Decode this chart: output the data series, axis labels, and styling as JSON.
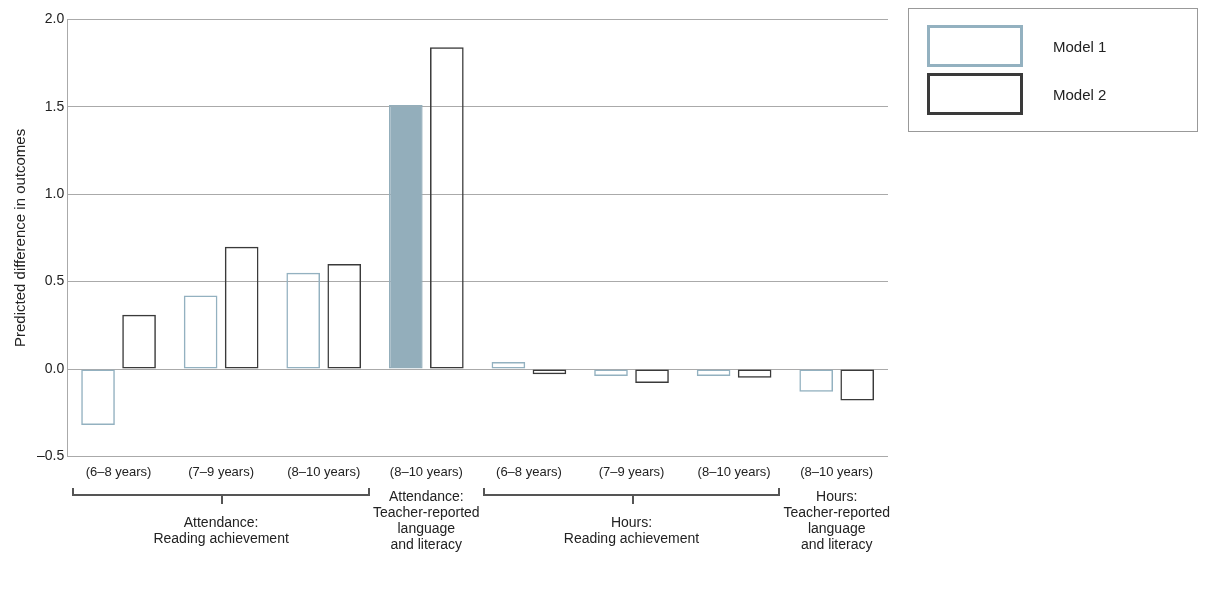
{
  "chart_data": {
    "type": "bar",
    "ylabel": "Predicted difference in outcomes",
    "categories": [
      "(6–8 years)",
      "(7–9 years)",
      "(8–10 years)",
      "(8–10 years)",
      "(6–8 years)",
      "(7–9 years)",
      "(8–10 years)",
      "(8–10 years)"
    ],
    "series": [
      {
        "name": "Model 1",
        "color": "#93b1c0",
        "colors": [
          "#93b1c0",
          "#93b1c0",
          "#93b1c0",
          "#93aebb",
          "#93b1c0",
          "#93b1c0",
          "#93b1c0",
          "#93b1c0"
        ],
        "values": [
          -0.32,
          0.42,
          0.55,
          1.51,
          0.04,
          -0.04,
          -0.04,
          -0.13
        ]
      },
      {
        "name": "Model 2",
        "color": "#3a3a3a",
        "colors": [
          "#3a3a3a",
          "#3a3a3a",
          "#3a3a3a",
          "#3a3a3a",
          "#3a3a3a",
          "#3a3a3a",
          "#3a3a3a",
          "#3a3a3a"
        ],
        "values": [
          0.31,
          0.7,
          0.6,
          1.84,
          -0.03,
          -0.08,
          -0.05,
          -0.18
        ]
      }
    ],
    "ylim": [
      -0.5,
      2.0
    ],
    "yticks": [
      {
        "value": -0.5,
        "label": "–0.5"
      },
      {
        "value": 0,
        "label": "0.0"
      },
      {
        "value": 0.5,
        "label": "0.5"
      },
      {
        "value": 1,
        "label": "1.0"
      },
      {
        "value": 1.5,
        "label": "1.5"
      },
      {
        "value": 2,
        "label": "2.0"
      }
    ],
    "grid": "y",
    "legend": "top right",
    "annotations": [
      "Attendance:\nReading achievement",
      "Attendance:\nTeacher-reported\nlanguage\nand literacy",
      "Hours:\nReading achievement",
      "Hours:\nTeacher-reported\nlanguage\nand literacy"
    ]
  }
}
